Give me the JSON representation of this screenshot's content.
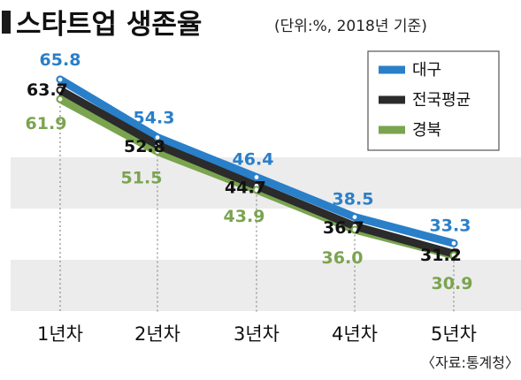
{
  "chart_data": {
    "type": "line",
    "title": "스타트업 생존율",
    "subtitle": "(단위:%, 2018년 기준)",
    "source": "〈자료:통계청〉",
    "categories": [
      "1년차",
      "2년차",
      "3년차",
      "4년차",
      "5년차"
    ],
    "series": [
      {
        "name": "대구",
        "color": "#2a7fc9",
        "values": [
          65.8,
          54.3,
          46.4,
          38.5,
          33.3
        ]
      },
      {
        "name": "전국평균",
        "color": "#2b2b2b",
        "values": [
          63.7,
          52.8,
          44.7,
          36.7,
          31.2
        ]
      },
      {
        "name": "경북",
        "color": "#7aa44f",
        "values": [
          61.9,
          51.5,
          43.9,
          36.0,
          30.9
        ]
      }
    ],
    "value_labels": [
      [
        "65.8",
        "54.3",
        "46.4",
        "38.5",
        "33.3"
      ],
      [
        "63.7",
        "52.8",
        "44.7",
        "36.7",
        "31.2"
      ],
      [
        "61.9",
        "51.5",
        "43.9",
        "36.0",
        "30.9"
      ]
    ],
    "ylim": [
      25,
      70
    ],
    "legend": "top-right",
    "grid": "horizontal bands"
  }
}
